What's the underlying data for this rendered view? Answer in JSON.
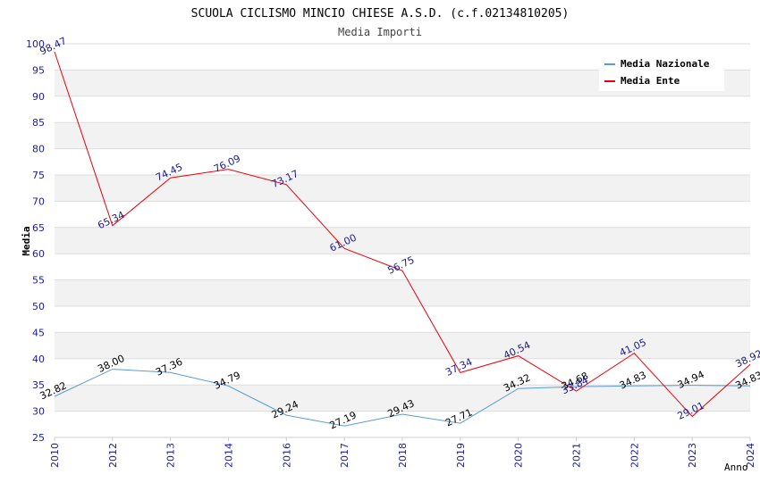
{
  "chart_data": {
    "type": "line",
    "title": "SCUOLA CICLISMO MINCIO CHIESE A.S.D. (c.f.02134810205)",
    "subtitle": "Media Importi",
    "xlabel": "Anno",
    "ylabel": "Media",
    "ylim": [
      25,
      100
    ],
    "yticks": [
      25,
      30,
      35,
      40,
      45,
      50,
      55,
      60,
      65,
      70,
      75,
      80,
      85,
      90,
      95,
      100
    ],
    "x": [
      "2010",
      "2012",
      "2013",
      "2014",
      "2016",
      "2017",
      "2018",
      "2019",
      "2020",
      "2021",
      "2022",
      "2023",
      "2024"
    ],
    "grid": true,
    "legend_position": "top-right",
    "series": [
      {
        "name": "Media Nazionale",
        "color": "#5b9bd5",
        "values": [
          32.82,
          38.0,
          37.36,
          34.79,
          29.24,
          27.19,
          29.43,
          27.71,
          34.32,
          34.68,
          34.83,
          34.94,
          34.83
        ],
        "labels": [
          "32.82",
          "38.00",
          "37.36",
          "34.79",
          "29.24",
          "27.19",
          "29.43",
          "27.71",
          "34.32",
          "34.68",
          "34.83",
          "34.94",
          "34.83"
        ]
      },
      {
        "name": "Media Ente",
        "color": "#e8000b",
        "values": [
          98.47,
          65.34,
          74.45,
          76.09,
          73.17,
          61.0,
          56.75,
          37.34,
          40.54,
          33.84,
          41.05,
          29.01,
          38.92
        ],
        "labels": [
          "98.47",
          "65.34",
          "74.45",
          "76.09",
          "73.17",
          "61.00",
          "56.75",
          "37.34",
          "40.54",
          "33.84",
          "41.05",
          "29.01",
          "38.92"
        ]
      }
    ]
  }
}
